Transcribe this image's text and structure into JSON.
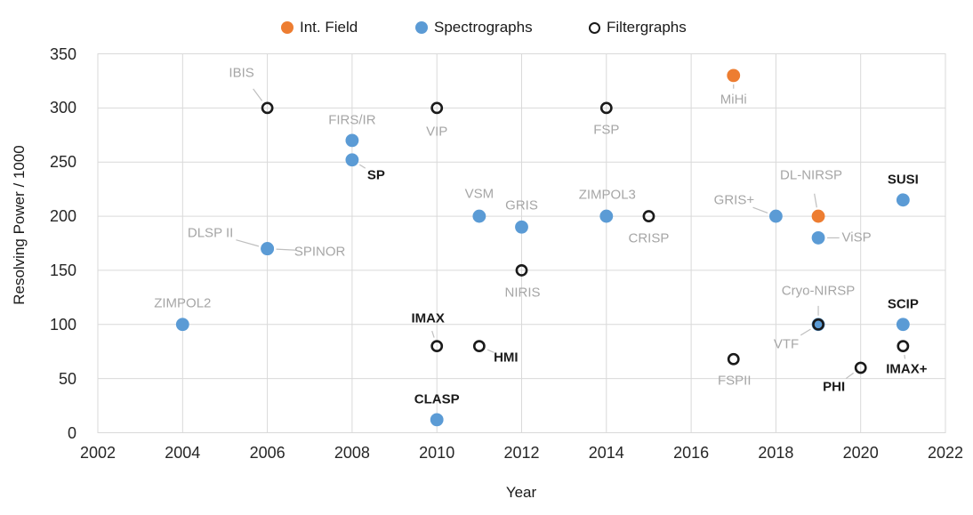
{
  "chart_data": {
    "type": "scatter",
    "title": "",
    "xlabel": "Year",
    "ylabel": "Resolving Power / 1000",
    "xlim": [
      2002,
      2022
    ],
    "ylim": [
      0,
      350
    ],
    "xtick_step": 2,
    "ytick_step": 50,
    "grid": true,
    "legend_position": "top-center",
    "colors": {
      "int_field": "#ED7D31",
      "spectrographs": "#5B9BD5",
      "filtergraphs": "#1A1A1A",
      "gridline": "#D9D9D9",
      "leader_line": "#BFBFBF",
      "label_gray": "#A6A6A6",
      "label_bold": "#1A1A1A",
      "axis_text": "#262626"
    },
    "series": [
      {
        "name": "Int. Field",
        "marker": "filled",
        "color": "#ED7D31",
        "points": [
          {
            "label": "MiHi",
            "x": 2017,
            "y": 330,
            "label_style": "gray",
            "label_dx": 0,
            "label_dy": 27,
            "leader": true
          },
          {
            "label": "DL-NIRSP",
            "x": 2019,
            "y": 200,
            "label_style": "gray",
            "label_dx": -8,
            "label_dy": -46,
            "leader": true
          }
        ]
      },
      {
        "name": "Spectrographs",
        "marker": "filled",
        "color": "#5B9BD5",
        "points": [
          {
            "label": "ZIMPOL2",
            "x": 2004,
            "y": 100,
            "label_style": "gray",
            "label_dx": 0,
            "label_dy": -24,
            "leader": false
          },
          {
            "label": "DLSP II",
            "x": 2006,
            "y": 170,
            "label_style": "gray",
            "label_dx": -64,
            "label_dy": -18,
            "leader": true
          },
          {
            "label": "SPINOR",
            "x": 2006,
            "y": 170,
            "label_style": "gray",
            "label_dx": 59,
            "label_dy": 3,
            "leader": true
          },
          {
            "label": "FIRS/IR",
            "x": 2008,
            "y": 270,
            "label_style": "gray",
            "label_dx": 0,
            "label_dy": -23,
            "leader": false
          },
          {
            "label": "SP",
            "x": 2008,
            "y": 252,
            "label_style": "bold",
            "label_dx": 27,
            "label_dy": 17,
            "leader": true
          },
          {
            "label": "CLASP",
            "x": 2010,
            "y": 12,
            "label_style": "bold",
            "label_dx": 0,
            "label_dy": -23,
            "leader": false
          },
          {
            "label": "VSM",
            "x": 2011,
            "y": 200,
            "label_style": "gray",
            "label_dx": 0,
            "label_dy": -25,
            "leader": false
          },
          {
            "label": "GRIS",
            "x": 2012,
            "y": 190,
            "label_style": "gray",
            "label_dx": 0,
            "label_dy": -24,
            "leader": false
          },
          {
            "label": "ZIMPOL3",
            "x": 2014,
            "y": 200,
            "label_style": "gray",
            "label_dx": 1,
            "label_dy": -24,
            "leader": false
          },
          {
            "label": "GRIS+",
            "x": 2018,
            "y": 200,
            "label_style": "gray",
            "label_dx": -47,
            "label_dy": -18,
            "leader": true
          },
          {
            "label": "ViSP",
            "x": 2019,
            "y": 180,
            "label_style": "gray",
            "label_dx": 43,
            "label_dy": 0,
            "leader": true
          },
          {
            "label": "Cryo-NIRSP",
            "x": 2019,
            "y": 100,
            "label_style": "gray",
            "label_dx": 0,
            "label_dy": -38,
            "leader": true
          },
          {
            "label": "SUSI",
            "x": 2021,
            "y": 215,
            "label_style": "bold",
            "label_dx": 0,
            "label_dy": -23,
            "leader": false
          },
          {
            "label": "SCIP",
            "x": 2021,
            "y": 100,
            "label_style": "bold",
            "label_dx": 0,
            "label_dy": -23,
            "leader": false
          }
        ]
      },
      {
        "name": "Filtergraphs",
        "marker": "ring",
        "color": "#1A1A1A",
        "points": [
          {
            "label": "IBIS",
            "x": 2006,
            "y": 300,
            "label_style": "gray",
            "label_dx": -29,
            "label_dy": -39,
            "leader": true
          },
          {
            "label": "VIP",
            "x": 2010,
            "y": 300,
            "label_style": "gray",
            "label_dx": 0,
            "label_dy": 27,
            "leader": false
          },
          {
            "label": "IMAX",
            "x": 2010,
            "y": 80,
            "label_style": "bold",
            "label_dx": -10,
            "label_dy": -31,
            "leader": true
          },
          {
            "label": "HMI",
            "x": 2011,
            "y": 80,
            "label_style": "bold",
            "label_dx": 30,
            "label_dy": 13,
            "leader": true
          },
          {
            "label": "NIRIS",
            "x": 2012,
            "y": 150,
            "label_style": "gray",
            "label_dx": 1,
            "label_dy": 25,
            "leader": false
          },
          {
            "label": "FSP",
            "x": 2014,
            "y": 300,
            "label_style": "gray",
            "label_dx": 0,
            "label_dy": 25,
            "leader": false
          },
          {
            "label": "CRISP",
            "x": 2015,
            "y": 200,
            "label_style": "gray",
            "label_dx": 0,
            "label_dy": 25,
            "leader": false
          },
          {
            "label": "FSPII",
            "x": 2017,
            "y": 68,
            "label_style": "gray",
            "label_dx": 1,
            "label_dy": 24,
            "leader": false
          },
          {
            "label": "VTF",
            "x": 2019,
            "y": 100,
            "label_style": "gray",
            "label_dx": -36,
            "label_dy": 22,
            "leader": true
          },
          {
            "label": "PHI",
            "x": 2020,
            "y": 60,
            "label_style": "bold",
            "label_dx": -30,
            "label_dy": 22,
            "leader": true
          },
          {
            "label": "IMAX+",
            "x": 2021,
            "y": 80,
            "label_style": "bold",
            "label_dx": 4,
            "label_dy": 26,
            "leader": true
          }
        ]
      }
    ]
  }
}
